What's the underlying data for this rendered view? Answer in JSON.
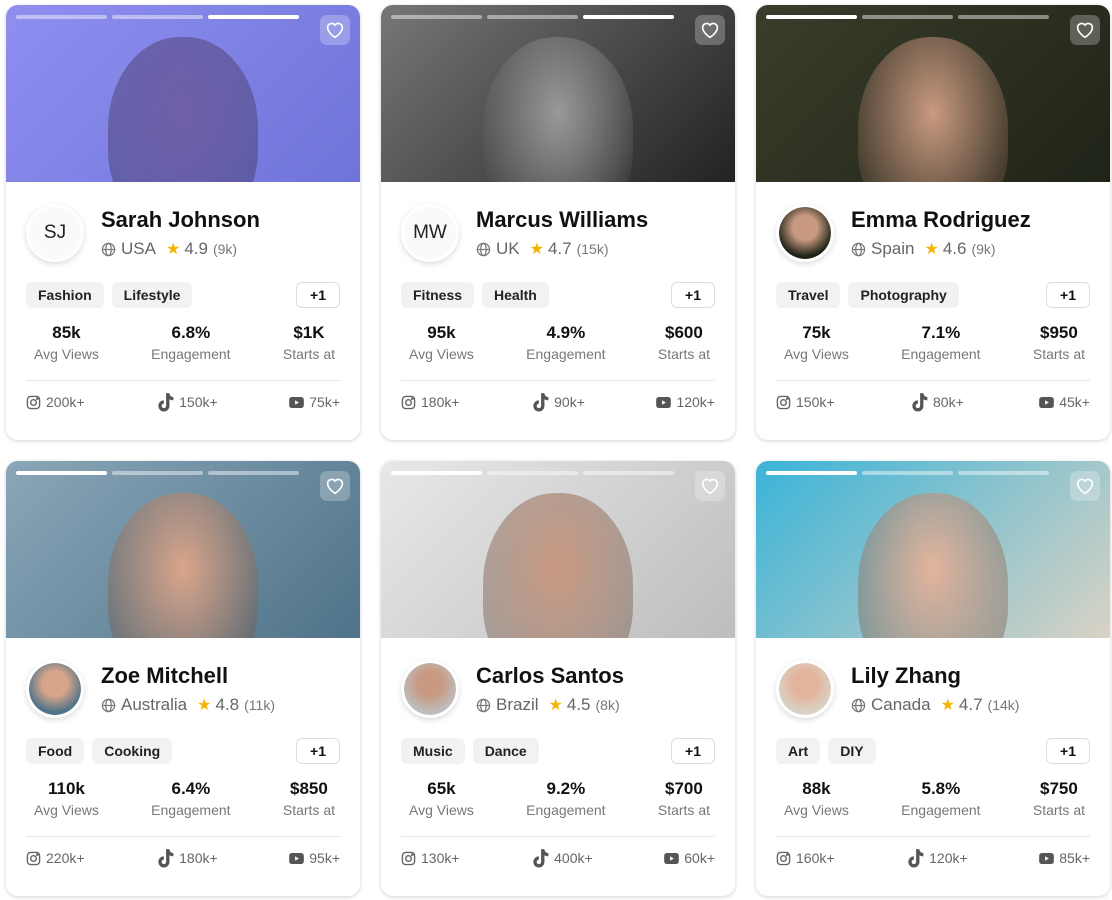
{
  "cards": [
    {
      "name": "Sarah Johnson",
      "initials": "SJ",
      "country": "USA",
      "rating": "4.9",
      "reviews": "(9k)",
      "tags": [
        "Fashion",
        "Lifestyle"
      ],
      "more": "+1",
      "stats": [
        {
          "value": "85k",
          "label": "Avg Views"
        },
        {
          "value": "6.8%",
          "label": "Engagement"
        },
        {
          "value": "$1K",
          "label": "Starts at"
        }
      ],
      "social": {
        "instagram": "200k+",
        "tiktok": "150k+",
        "youtube": "75k+"
      },
      "active_slide": 3,
      "bg": [
        "#8f8ff0",
        "#6f74d8"
      ],
      "skin": "#6f5fa8"
    },
    {
      "name": "Marcus Williams",
      "initials": "MW",
      "country": "UK",
      "rating": "4.7",
      "reviews": "(15k)",
      "tags": [
        "Fitness",
        "Health"
      ],
      "more": "+1",
      "stats": [
        {
          "value": "95k",
          "label": "Avg Views"
        },
        {
          "value": "4.9%",
          "label": "Engagement"
        },
        {
          "value": "$600",
          "label": "Starts at"
        }
      ],
      "social": {
        "instagram": "180k+",
        "tiktok": "90k+",
        "youtube": "120k+"
      },
      "active_slide": 3,
      "bg": [
        "#777",
        "#222"
      ],
      "skin": "#999"
    },
    {
      "name": "Emma Rodriguez",
      "initials": "",
      "country": "Spain",
      "rating": "4.6",
      "reviews": "(9k)",
      "tags": [
        "Travel",
        "Photography"
      ],
      "more": "+1",
      "stats": [
        {
          "value": "75k",
          "label": "Avg Views"
        },
        {
          "value": "7.1%",
          "label": "Engagement"
        },
        {
          "value": "$950",
          "label": "Starts at"
        }
      ],
      "social": {
        "instagram": "150k+",
        "tiktok": "80k+",
        "youtube": "45k+"
      },
      "active_slide": 1,
      "bg": [
        "#3a3d2a",
        "#1f2418"
      ],
      "skin": "#c99a80"
    },
    {
      "name": "Zoe Mitchell",
      "initials": "",
      "country": "Australia",
      "rating": "4.8",
      "reviews": "(11k)",
      "tags": [
        "Food",
        "Cooking"
      ],
      "more": "+1",
      "stats": [
        {
          "value": "110k",
          "label": "Avg Views"
        },
        {
          "value": "6.4%",
          "label": "Engagement"
        },
        {
          "value": "$850",
          "label": "Starts at"
        }
      ],
      "social": {
        "instagram": "220k+",
        "tiktok": "180k+",
        "youtube": "95k+"
      },
      "active_slide": 1,
      "bg": [
        "#8aa6b8",
        "#4f7389"
      ],
      "skin": "#d9a58a"
    },
    {
      "name": "Carlos Santos",
      "initials": "",
      "country": "Brazil",
      "rating": "4.5",
      "reviews": "(8k)",
      "tags": [
        "Music",
        "Dance"
      ],
      "more": "+1",
      "stats": [
        {
          "value": "65k",
          "label": "Avg Views"
        },
        {
          "value": "9.2%",
          "label": "Engagement"
        },
        {
          "value": "$700",
          "label": "Starts at"
        }
      ],
      "social": {
        "instagram": "130k+",
        "tiktok": "400k+",
        "youtube": "60k+"
      },
      "active_slide": 1,
      "bg": [
        "#e8e8e8",
        "#bdbdbd"
      ],
      "skin": "#c99a82"
    },
    {
      "name": "Lily Zhang",
      "initials": "",
      "country": "Canada",
      "rating": "4.7",
      "reviews": "(14k)",
      "tags": [
        "Art",
        "DIY"
      ],
      "more": "+1",
      "stats": [
        {
          "value": "88k",
          "label": "Avg Views"
        },
        {
          "value": "5.8%",
          "label": "Engagement"
        },
        {
          "value": "$750",
          "label": "Starts at"
        }
      ],
      "social": {
        "instagram": "160k+",
        "tiktok": "120k+",
        "youtube": "85k+"
      },
      "active_slide": 1,
      "bg": [
        "#3ab4d8",
        "#d9d2c4"
      ],
      "skin": "#e3b49c"
    }
  ],
  "icons": {
    "favorite": "heart-icon",
    "location": "globe-icon",
    "rating": "star-icon",
    "instagram": "instagram-icon",
    "tiktok": "tiktok-icon",
    "youtube": "youtube-icon"
  },
  "colors": {
    "star": "#f5b301",
    "tag_bg": "#f2f2f2"
  }
}
